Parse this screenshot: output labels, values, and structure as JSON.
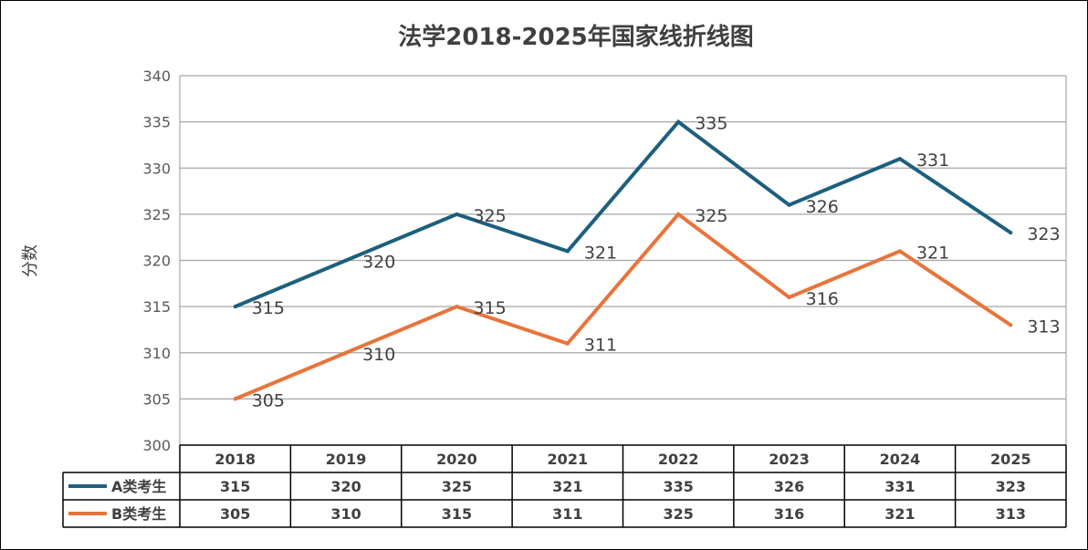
{
  "chart_data": {
    "type": "line",
    "title": "法学2018-2025年国家线折线图",
    "ylabel": "分数",
    "xlabel": "",
    "categories": [
      "2018",
      "2019",
      "2020",
      "2021",
      "2022",
      "2023",
      "2024",
      "2025"
    ],
    "ylim": [
      300,
      340
    ],
    "yticks": [
      300,
      305,
      310,
      315,
      320,
      325,
      330,
      335,
      340
    ],
    "grid": true,
    "legend": "data-table",
    "series": [
      {
        "name": "A类考生",
        "color": "#1d5f7d",
        "values": [
          315,
          320,
          325,
          321,
          335,
          326,
          331,
          323
        ]
      },
      {
        "name": "B类考生",
        "color": "#e8743b",
        "values": [
          305,
          310,
          315,
          311,
          325,
          316,
          321,
          313
        ]
      }
    ]
  }
}
